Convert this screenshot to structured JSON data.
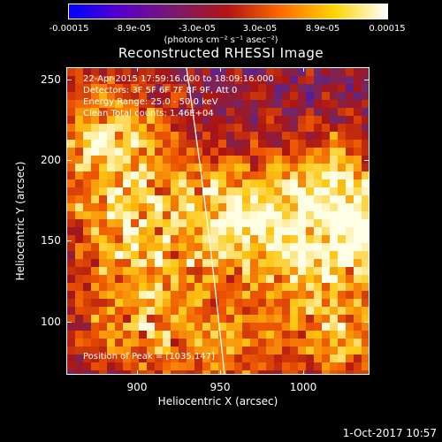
{
  "colorbar": {
    "tick_labels": [
      "-0.00015",
      "-8.9e-05",
      "-3.0e-05",
      "3.0e-05",
      "8.9e-05",
      "0.00015"
    ],
    "units": "(photons cm⁻² s⁻¹ asec⁻²)",
    "colormap": [
      "#0000ff",
      "#5a00c8",
      "#7a1a6a",
      "#b41414",
      "#ff6a00",
      "#ffd400",
      "#ffffff"
    ]
  },
  "title": "Reconstructed RHESSI Image",
  "info": {
    "time_range": "22-Apr-2015 17:59:16.000 to 18:09:16.000",
    "detectors": "Detectors: 3F 5F 6F 7F 8F 9F, Att 0",
    "energy_range": "Energy Range: 25.0 - 50.0 keV",
    "clean_counts": "Clean     Total counts: 1.46E+04"
  },
  "peak": "Position of Peak = [1035,147]",
  "axes": {
    "x_title": "Heliocentric X (arcsec)",
    "y_title": "Heliocentric Y (arcsec)",
    "x_ticks": [
      "900",
      "950",
      "1000"
    ],
    "y_ticks": [
      "250",
      "200",
      "150",
      "100"
    ],
    "x_range": [
      860,
      1045
    ],
    "y_range": [
      78,
      266
    ]
  },
  "footer": {
    "date": "1-Oct-2017 10:57"
  }
}
